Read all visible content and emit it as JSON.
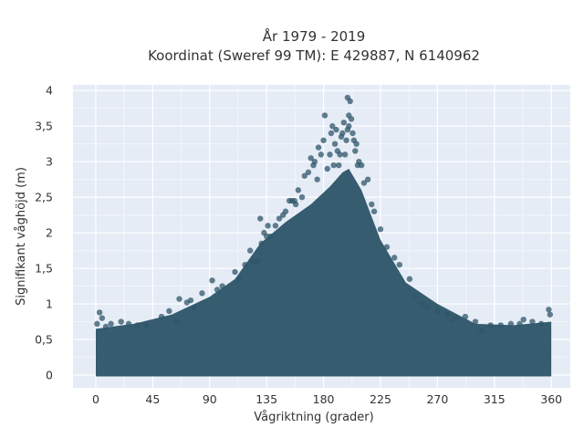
{
  "chart_data": {
    "type": "scatter",
    "title": "År 1979 - 2019",
    "subtitle": "Koordinat (Sweref 99 TM): E 429887, N 6140962",
    "xlabel": "Vågriktning (grader)",
    "ylabel": "Signifikant våghöjd (m)",
    "xlim": [
      -18,
      375
    ],
    "ylim": [
      -0.18,
      4.08
    ],
    "grid": true,
    "legend": "none",
    "marker_color": "#2f5569",
    "plot_background": "#e5ecf6",
    "x_ticks": [
      0,
      45,
      90,
      135,
      180,
      225,
      270,
      315,
      360
    ],
    "x_tick_labels": [
      "0",
      "45",
      "90",
      "135",
      "180",
      "225",
      "270",
      "315",
      "360"
    ],
    "y_ticks": [
      0,
      0.5,
      1,
      1.5,
      2,
      2.5,
      3,
      3.5,
      4
    ],
    "y_tick_labels": [
      "0",
      "0,5",
      "1",
      "1,5",
      "2",
      "2,5",
      "3",
      "3,5",
      "4"
    ],
    "envelope": {
      "x": [
        0,
        30,
        60,
        90,
        110,
        130,
        150,
        170,
        185,
        195,
        200,
        210,
        225,
        245,
        270,
        300,
        330,
        360
      ],
      "y_max": [
        0.65,
        0.72,
        0.85,
        1.1,
        1.35,
        1.85,
        2.15,
        2.4,
        2.65,
        2.85,
        2.9,
        2.6,
        1.9,
        1.3,
        1.0,
        0.72,
        0.7,
        0.75
      ]
    },
    "series": [
      {
        "x": [
          1,
          3,
          5,
          8,
          12,
          20,
          26,
          33,
          40,
          52,
          58,
          64,
          66,
          72,
          75,
          78,
          84,
          92,
          96,
          100,
          110,
          113,
          118,
          122,
          124,
          128,
          130,
          131,
          133,
          135,
          136,
          138,
          142,
          145,
          148,
          150,
          153,
          155,
          157,
          158,
          160,
          163,
          165,
          168,
          170,
          172,
          173,
          175,
          176,
          178,
          180,
          181,
          183,
          185,
          186,
          187,
          188,
          189,
          190,
          191,
          192,
          193,
          194,
          195,
          196,
          197,
          198,
          199,
          199,
          200,
          200,
          201,
          202,
          203,
          204,
          205,
          206,
          207,
          208,
          210,
          212,
          215,
          218,
          220,
          225,
          230,
          236,
          240,
          248,
          252,
          258,
          262,
          270,
          278,
          282,
          285,
          292,
          300,
          305,
          312,
          320,
          328,
          335,
          338,
          345,
          352,
          358,
          359
        ],
        "y": [
          0.72,
          0.88,
          0.8,
          0.68,
          0.72,
          0.75,
          0.72,
          0.7,
          0.7,
          0.82,
          0.9,
          0.75,
          1.07,
          1.02,
          1.05,
          0.95,
          1.15,
          1.33,
          1.2,
          1.25,
          1.45,
          1.35,
          1.55,
          1.75,
          1.6,
          1.6,
          2.2,
          1.85,
          2.0,
          1.95,
          2.1,
          1.95,
          2.1,
          2.2,
          2.25,
          2.3,
          2.45,
          2.45,
          2.45,
          2.4,
          2.6,
          2.5,
          2.8,
          2.85,
          3.05,
          2.95,
          3.0,
          2.75,
          3.2,
          3.1,
          3.3,
          3.65,
          2.9,
          3.1,
          3.4,
          3.5,
          2.95,
          3.25,
          3.45,
          3.15,
          2.95,
          3.1,
          3.35,
          3.4,
          3.55,
          3.1,
          3.3,
          3.45,
          3.9,
          3.5,
          3.65,
          3.85,
          3.6,
          3.4,
          3.3,
          3.15,
          3.25,
          2.95,
          3.0,
          2.95,
          2.7,
          2.75,
          2.4,
          2.3,
          2.05,
          1.8,
          1.65,
          1.55,
          1.35,
          1.1,
          1.0,
          0.95,
          0.9,
          0.85,
          0.78,
          0.8,
          0.82,
          0.75,
          0.62,
          0.7,
          0.7,
          0.72,
          0.72,
          0.78,
          0.75,
          0.72,
          0.92,
          0.85
        ]
      }
    ]
  }
}
